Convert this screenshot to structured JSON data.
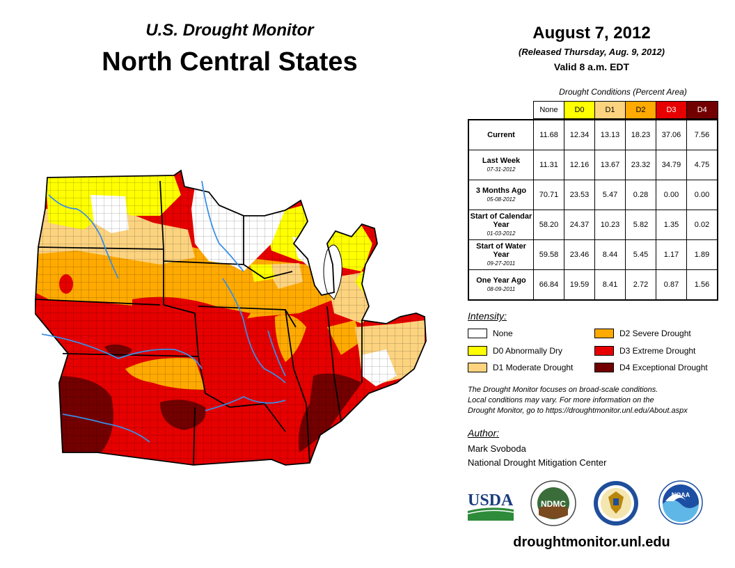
{
  "header": {
    "subtitle": "U.S. Drought Monitor",
    "title": "North Central States",
    "date": "August 7, 2012",
    "released": "(Released Thursday, Aug. 9, 2012)",
    "valid": "Valid 8 a.m. EDT"
  },
  "table": {
    "caption": "Drought Conditions (Percent Area)",
    "columns": [
      "None",
      "D0",
      "D1",
      "D2",
      "D3",
      "D4"
    ],
    "column_colors": [
      "#ffffff",
      "#ffff00",
      "#fcd37f",
      "#ffaa00",
      "#e60000",
      "#730000"
    ],
    "rows": [
      {
        "label": "Current",
        "sub": "",
        "values": [
          "11.68",
          "12.34",
          "13.13",
          "18.23",
          "37.06",
          "7.56"
        ]
      },
      {
        "label": "Last Week",
        "sub": "07-31-2012",
        "values": [
          "11.31",
          "12.16",
          "13.67",
          "23.32",
          "34.79",
          "4.75"
        ]
      },
      {
        "label": "3 Months Ago",
        "sub": "05-08-2012",
        "values": [
          "70.71",
          "23.53",
          "5.47",
          "0.28",
          "0.00",
          "0.00"
        ]
      },
      {
        "label": "Start of Calendar Year",
        "sub": "01-03-2012",
        "values": [
          "58.20",
          "24.37",
          "10.23",
          "5.82",
          "1.35",
          "0.02"
        ]
      },
      {
        "label": "Start of Water Year",
        "sub": "09-27-2011",
        "values": [
          "59.58",
          "23.46",
          "8.44",
          "5.45",
          "1.17",
          "1.89"
        ]
      },
      {
        "label": "One Year Ago",
        "sub": "08-09-2011",
        "values": [
          "66.84",
          "19.59",
          "8.41",
          "2.72",
          "0.87",
          "1.56"
        ]
      }
    ]
  },
  "legend": {
    "title": "Intensity:",
    "items": [
      {
        "label": "None",
        "color": "#ffffff"
      },
      {
        "label": "D0 Abnormally Dry",
        "color": "#ffff00"
      },
      {
        "label": "D1 Moderate Drought",
        "color": "#fcd37f"
      },
      {
        "label": "D2 Severe Drought",
        "color": "#ffaa00"
      },
      {
        "label": "D3 Extreme Drought",
        "color": "#e60000"
      },
      {
        "label": "D4 Exceptional Drought",
        "color": "#730000"
      }
    ]
  },
  "note": {
    "line1": "The Drought Monitor focuses on broad-scale conditions.",
    "line2": "Local conditions may vary. For more information on the",
    "line3": "Drought Monitor, go to https://droughtmonitor.unl.edu/About.aspx"
  },
  "author": {
    "label": "Author:",
    "name": "Mark Svoboda",
    "org": "National Drought Mitigation Center"
  },
  "logos": {
    "usda": "USDA",
    "ndmc": "NDMC",
    "noaa": "NOAA"
  },
  "website": "droughtmonitor.unl.edu"
}
